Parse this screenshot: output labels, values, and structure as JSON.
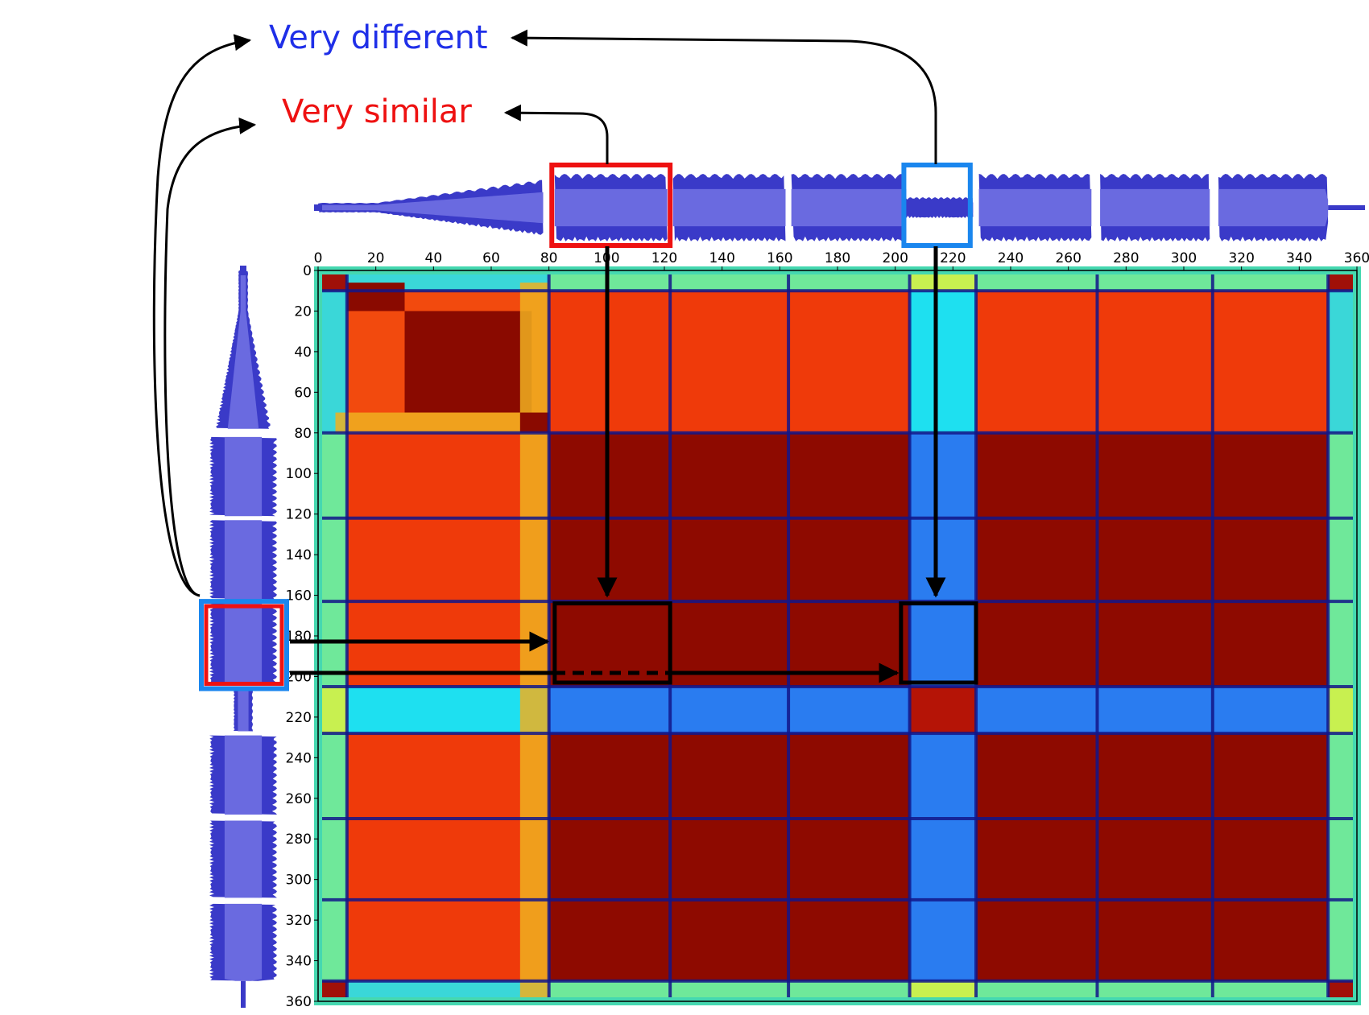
{
  "labels": {
    "very_different": "Very different",
    "very_similar": "Very similar"
  },
  "colors": {
    "different": "#1f2fe8",
    "similar": "#ee1111",
    "waveform": "#3a3ac8",
    "waveform_light": "#6a6ae0",
    "highlight_blue": "#1a86ee",
    "highlight_red": "#ee1111"
  },
  "axis": {
    "x_ticks": [
      "0",
      "20",
      "40",
      "60",
      "80",
      "100",
      "120",
      "140",
      "160",
      "180",
      "200",
      "220",
      "240",
      "260",
      "280",
      "300",
      "320",
      "340",
      "360"
    ],
    "y_ticks": [
      "0",
      "20",
      "40",
      "60",
      "80",
      "100",
      "120",
      "140",
      "160",
      "180",
      "200",
      "220",
      "240",
      "260",
      "280",
      "300",
      "320",
      "340",
      "360"
    ]
  },
  "matrix": {
    "range": [
      0,
      360
    ],
    "section_boundaries": [
      10,
      80,
      122,
      163,
      205,
      228,
      270,
      310,
      350
    ],
    "boxes": [
      {
        "name": "similar-box",
        "x": [
          82,
          122
        ],
        "y": [
          164,
          203
        ]
      },
      {
        "name": "different-box",
        "x": [
          202,
          228
        ],
        "y": [
          164,
          203
        ]
      }
    ],
    "top_highlights": [
      {
        "name": "red",
        "x": [
          81,
          122
        ]
      },
      {
        "name": "blue",
        "x": [
          203,
          226
        ]
      }
    ],
    "left_highlight_y": [
      163,
      206
    ]
  }
}
